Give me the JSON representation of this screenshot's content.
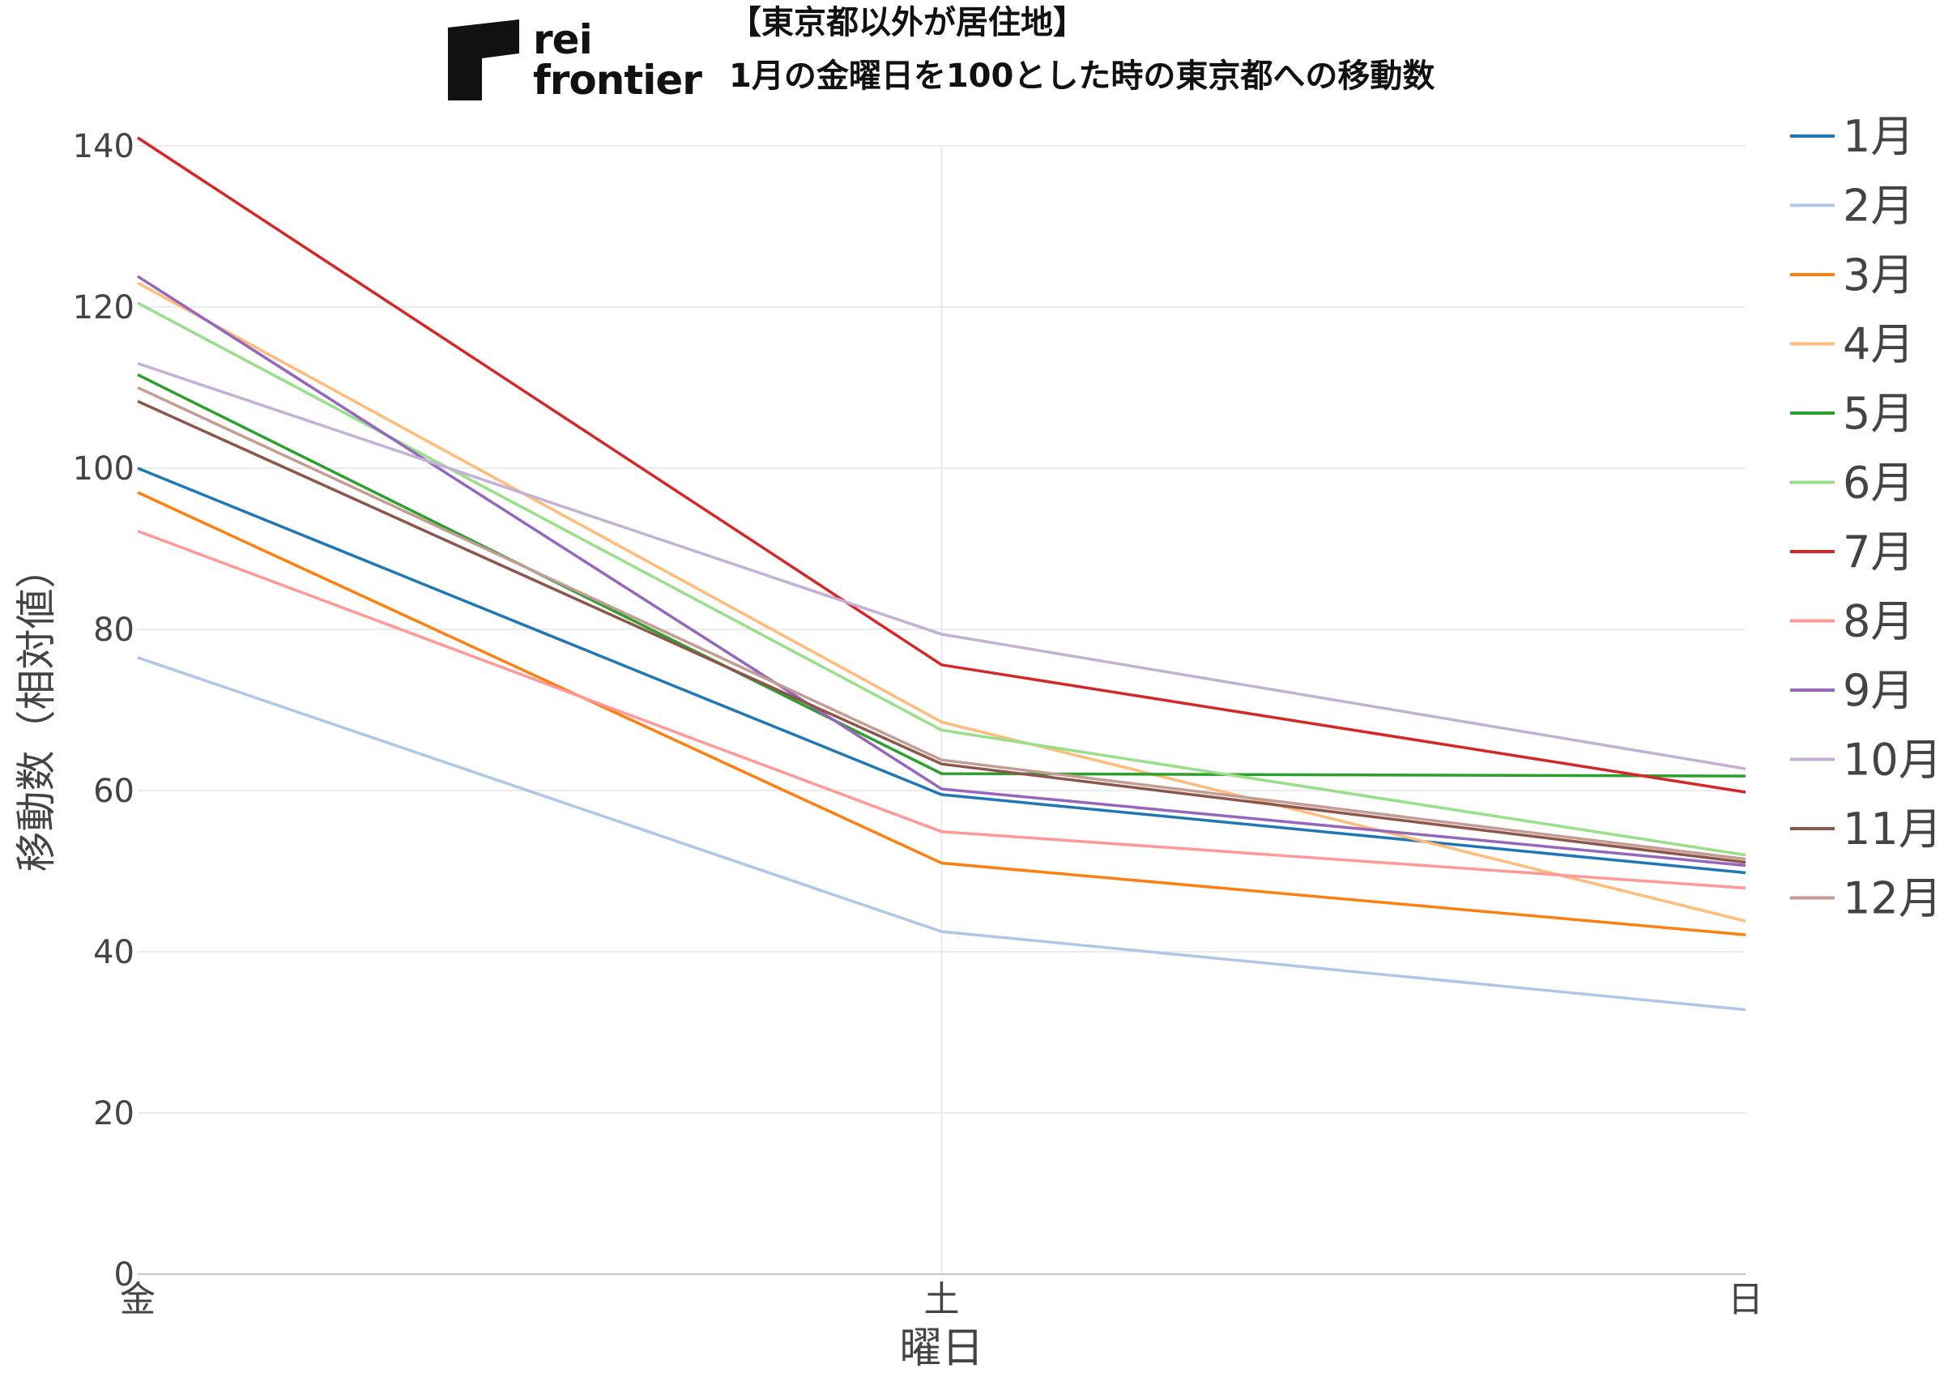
{
  "logo": {
    "line1": "rei",
    "line2": "frontier"
  },
  "chart_data": {
    "type": "line",
    "title": "【東京都以外が居住地】",
    "subtitle": "1月の金曜日を100とした時の東京都への移動数",
    "xlabel": "曜日",
    "ylabel": "移動数（相対値）",
    "categories": [
      "金",
      "土",
      "日"
    ],
    "ylim": [
      0,
      140
    ],
    "yticks": [
      0,
      20,
      40,
      60,
      80,
      100,
      120,
      140
    ],
    "grid": true,
    "legend_position": "right",
    "series": [
      {
        "name": "1月",
        "color": "#1f77b4",
        "values": [
          100.0,
          59.5,
          49.8
        ]
      },
      {
        "name": "2月",
        "color": "#aec7e8",
        "values": [
          76.5,
          42.5,
          32.8
        ]
      },
      {
        "name": "3月",
        "color": "#ff7f0e",
        "values": [
          97.0,
          51.0,
          42.1
        ]
      },
      {
        "name": "4月",
        "color": "#ffbb78",
        "values": [
          123.0,
          68.5,
          43.8
        ]
      },
      {
        "name": "5月",
        "color": "#2ca02c",
        "values": [
          111.6,
          62.1,
          61.8
        ]
      },
      {
        "name": "6月",
        "color": "#98df8a",
        "values": [
          120.5,
          67.5,
          52.0
        ]
      },
      {
        "name": "7月",
        "color": "#d62728",
        "values": [
          141.0,
          75.6,
          59.8
        ]
      },
      {
        "name": "8月",
        "color": "#ff9896",
        "values": [
          92.2,
          54.9,
          47.9
        ]
      },
      {
        "name": "9月",
        "color": "#9467bd",
        "values": [
          123.8,
          60.2,
          50.7
        ]
      },
      {
        "name": "10月",
        "color": "#c5b0d5",
        "values": [
          113.0,
          79.4,
          62.7
        ]
      },
      {
        "name": "11月",
        "color": "#8c564b",
        "values": [
          108.3,
          63.3,
          51.1
        ]
      },
      {
        "name": "12月",
        "color": "#c49c94",
        "values": [
          110.0,
          63.8,
          51.5
        ]
      }
    ]
  }
}
